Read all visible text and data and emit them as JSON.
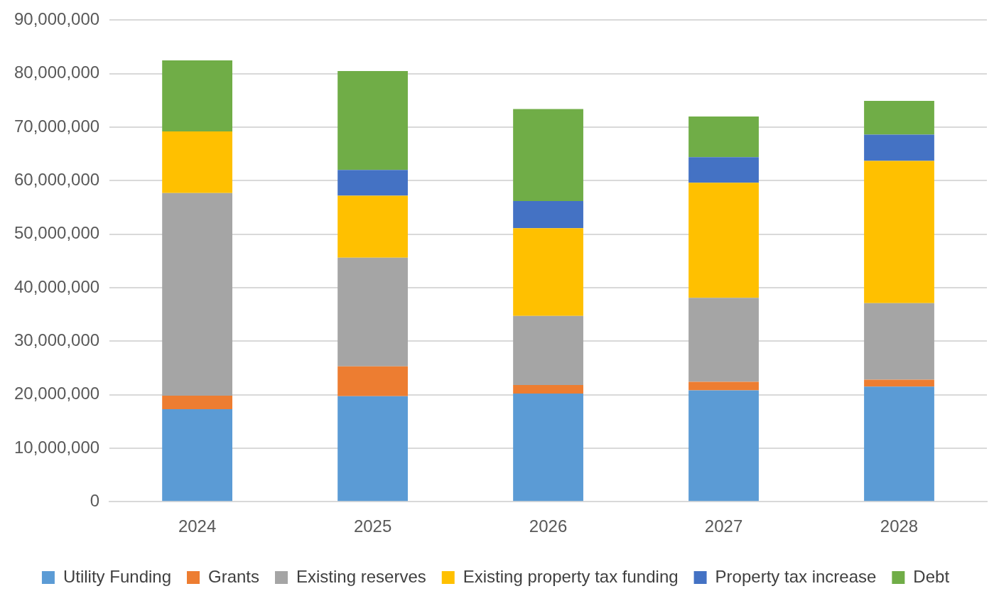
{
  "chart_data": {
    "type": "bar",
    "stacked": true,
    "categories": [
      "2024",
      "2025",
      "2026",
      "2027",
      "2028"
    ],
    "series": [
      {
        "name": "Utility Funding",
        "color": "#5b9bd5",
        "values": [
          17300000,
          19700000,
          20200000,
          20800000,
          21500000
        ]
      },
      {
        "name": "Grants",
        "color": "#ed7d31",
        "values": [
          2500000,
          5600000,
          1600000,
          1600000,
          1300000
        ]
      },
      {
        "name": "Existing reserves",
        "color": "#a5a5a5",
        "values": [
          37900000,
          20300000,
          12900000,
          15700000,
          14300000
        ]
      },
      {
        "name": "Existing property tax funding",
        "color": "#ffc000",
        "values": [
          11500000,
          11600000,
          16400000,
          21500000,
          26600000
        ]
      },
      {
        "name": "Property tax increase",
        "color": "#4472c4",
        "values": [
          0,
          4800000,
          5100000,
          4800000,
          4900000
        ]
      },
      {
        "name": "Debt",
        "color": "#70ad47",
        "values": [
          13300000,
          18500000,
          17200000,
          7600000,
          6300000
        ]
      }
    ],
    "ylim": [
      0,
      90000000
    ],
    "yticks": [
      {
        "value": 0,
        "label": "0"
      },
      {
        "value": 10000000,
        "label": "10,000,000"
      },
      {
        "value": 20000000,
        "label": "20,000,000"
      },
      {
        "value": 30000000,
        "label": "30,000,000"
      },
      {
        "value": 40000000,
        "label": "40,000,000"
      },
      {
        "value": 50000000,
        "label": "50,000,000"
      },
      {
        "value": 60000000,
        "label": "60,000,000"
      },
      {
        "value": 70000000,
        "label": "70,000,000"
      },
      {
        "value": 80000000,
        "label": "80,000,000"
      },
      {
        "value": 90000000,
        "label": "90,000,000"
      }
    ],
    "grid": "y",
    "legend": "bottom"
  }
}
